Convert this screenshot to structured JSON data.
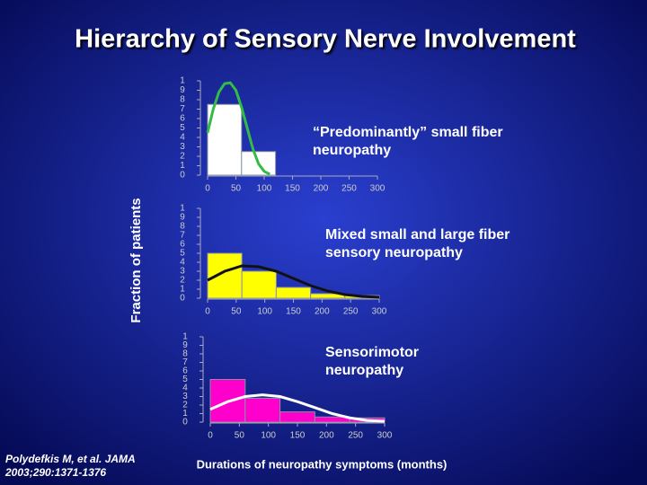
{
  "title": "Hierarchy of Sensory Nerve Involvement",
  "y_label": "Fraction of patients",
  "x_label": "Durations of neuropathy symptoms (months)",
  "citation": [
    "Polydefkis M, et al. JAMA",
    "2003;290:1371-1376"
  ],
  "chart_data": [
    {
      "type": "histogram",
      "annotation": [
        "“Predominantly” small fiber",
        "neuropathy"
      ],
      "bins": [
        0,
        60,
        120,
        180,
        240,
        300
      ],
      "values": [
        0.75,
        0.25,
        0,
        0,
        0
      ],
      "color": "#ffffff",
      "curve": {
        "color": "#33bb44",
        "x": [
          0,
          10,
          20,
          30,
          40,
          50,
          60,
          70,
          80,
          90,
          100,
          110
        ],
        "y": [
          0.45,
          0.7,
          0.88,
          0.97,
          0.98,
          0.9,
          0.72,
          0.5,
          0.28,
          0.12,
          0.04,
          0.01
        ]
      },
      "xlim": [
        0,
        300
      ],
      "xticks": [
        0,
        50,
        100,
        150,
        200,
        250,
        300
      ],
      "ylim": [
        0,
        1
      ],
      "yticks": [
        1,
        {
          "value": 0.9,
          "label": "9"
        },
        {
          "value": 0.8,
          "label": "8"
        },
        {
          "value": 0.7,
          "label": "7"
        },
        {
          "value": 0.6,
          "label": "6"
        },
        {
          "value": 0.5,
          "label": "5"
        },
        {
          "value": 0.4,
          "label": "4"
        },
        {
          "value": 0.3,
          "label": "3"
        },
        {
          "value": 0.2,
          "label": "2"
        },
        {
          "value": 0.1,
          "label": "1"
        },
        0
      ]
    },
    {
      "type": "histogram",
      "annotation": [
        "Mixed small and large fiber",
        "sensory neuropathy"
      ],
      "bins": [
        0,
        60,
        120,
        180,
        240,
        300
      ],
      "values": [
        0.5,
        0.3,
        0.12,
        0.05,
        0.03
      ],
      "color": "#ffff00",
      "curve": {
        "color": "#111111",
        "x": [
          0,
          30,
          60,
          90,
          120,
          150,
          180,
          210,
          240,
          270,
          300
        ],
        "y": [
          0.2,
          0.3,
          0.36,
          0.35,
          0.3,
          0.22,
          0.14,
          0.08,
          0.04,
          0.02,
          0.01
        ]
      },
      "xlim": [
        0,
        300
      ],
      "xticks": [
        0,
        50,
        100,
        150,
        200,
        250,
        300
      ],
      "ylim": [
        0,
        1
      ],
      "yticks": [
        1,
        {
          "value": 0.9,
          "label": "9"
        },
        {
          "value": 0.8,
          "label": "8"
        },
        {
          "value": 0.7,
          "label": "7"
        },
        {
          "value": 0.6,
          "label": "6"
        },
        {
          "value": 0.5,
          "label": "5"
        },
        {
          "value": 0.4,
          "label": "4"
        },
        {
          "value": 0.3,
          "label": "3"
        },
        {
          "value": 0.2,
          "label": "2"
        },
        {
          "value": 0.1,
          "label": "1"
        },
        0
      ]
    },
    {
      "type": "histogram",
      "annotation": [
        "Sensorimotor",
        "neuropathy"
      ],
      "bins": [
        0,
        60,
        120,
        180,
        240,
        300
      ],
      "values": [
        0.5,
        0.28,
        0.12,
        0.06,
        0.05
      ],
      "color": "#ff00cc",
      "curve": {
        "color": "#ffffff",
        "x": [
          0,
          30,
          60,
          90,
          120,
          150,
          180,
          210,
          240,
          270,
          300
        ],
        "y": [
          0.15,
          0.24,
          0.3,
          0.32,
          0.3,
          0.24,
          0.17,
          0.1,
          0.05,
          0.02,
          0.01
        ]
      },
      "xlim": [
        0,
        300
      ],
      "xticks": [
        0,
        50,
        100,
        150,
        200,
        250,
        300
      ],
      "ylim": [
        0,
        1
      ],
      "yticks": [
        1,
        {
          "value": 0.9,
          "label": "9"
        },
        {
          "value": 0.8,
          "label": "8"
        },
        {
          "value": 0.7,
          "label": "7"
        },
        {
          "value": 0.6,
          "label": "6"
        },
        {
          "value": 0.5,
          "label": "5"
        },
        {
          "value": 0.4,
          "label": "4"
        },
        {
          "value": 0.3,
          "label": "3"
        },
        {
          "value": 0.2,
          "label": "2"
        },
        {
          "value": 0.1,
          "label": "1"
        },
        0
      ]
    }
  ]
}
